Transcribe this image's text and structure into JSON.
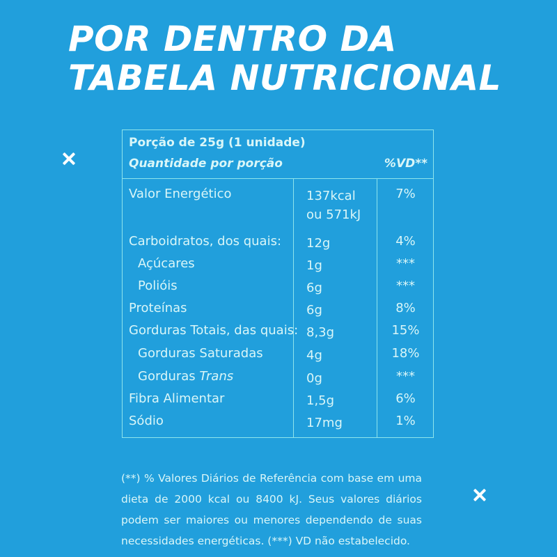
{
  "title": {
    "line1": "POR DENTRO DA",
    "line2": "TABELA NUTRICIONAL"
  },
  "colors": {
    "background": "#219fdc",
    "border": "#8fe5ec",
    "text": "#ffffff"
  },
  "table": {
    "portion": "Porção de 25g  (1 unidade)",
    "quantity_header": "Quantidade por porção",
    "vd_header": "%VD**",
    "rows": [
      {
        "name": "Valor Energético",
        "amount1": "137kcal",
        "amount2": "ou 571kJ",
        "vd": "7%"
      },
      {
        "name": "Carboidratos, dos quais:",
        "amount": "12g",
        "vd": "4%"
      },
      {
        "name": "Açúcares",
        "amount": "1g",
        "vd": "***"
      },
      {
        "name": "Polióis",
        "amount": "6g",
        "vd": "***"
      },
      {
        "name": "Proteínas",
        "amount": "6g",
        "vd": "8%"
      },
      {
        "name": "Gorduras Totais, das quais:",
        "amount": "8,3g",
        "vd": "15%"
      },
      {
        "name": "Gorduras Saturadas",
        "amount": "4g",
        "vd": "18%"
      },
      {
        "name_prefix": "Gorduras",
        "name_italic": "Trans",
        "amount": "0g",
        "vd": "***"
      },
      {
        "name": "Fibra Alimentar",
        "amount": "1,5g",
        "vd": "6%"
      },
      {
        "name": "Sódio",
        "amount": "17mg",
        "vd": "1%"
      }
    ]
  },
  "footnote": "(**) % Valores Diários de Referência com base em uma dieta de 2000 kcal ou 8400 kJ. Seus valores diários podem ser maiores ou menores dependendo de suas necessidades energéticas. (***) VD não estabelecido."
}
